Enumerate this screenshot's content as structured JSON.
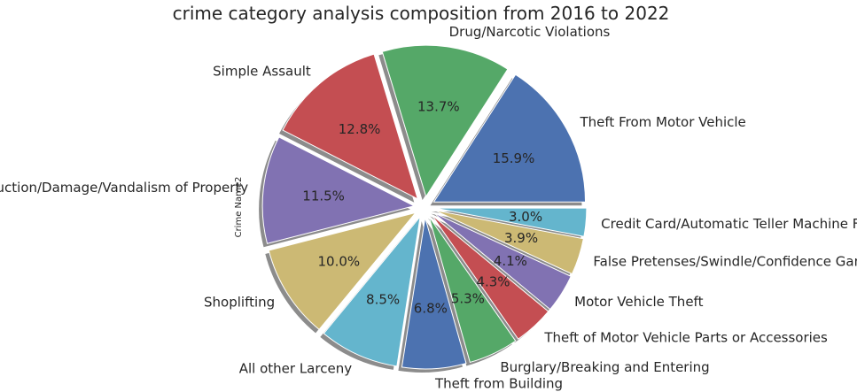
{
  "chart_data": {
    "type": "pie",
    "title": "crime category analysis composition from 2016 to 2022",
    "ylabel": "Crime Name2",
    "categories": [
      "Theft From Motor Vehicle",
      "Drug/Narcotic Violations",
      "Simple Assault",
      "Destruction/Damage/Vandalism of Property",
      "Shoplifting",
      "All other Larceny",
      "Theft from Building",
      "Burglary/Breaking and Entering",
      "Theft of Motor Vehicle Parts or Accessories",
      "Motor Vehicle Theft",
      "False Pretenses/Swindle/Confidence Game",
      "Credit Card/Automatic Teller Machine Fraud"
    ],
    "values": [
      15.9,
      13.7,
      12.8,
      11.5,
      10.0,
      8.5,
      6.8,
      5.3,
      4.3,
      4.1,
      3.9,
      3.0
    ],
    "value_labels": [
      "15.9%",
      "13.7%",
      "12.8%",
      "11.5%",
      "10.0%",
      "8.5%",
      "6.8%",
      "5.3%",
      "4.3%",
      "4.1%",
      "3.9%",
      "3.0%"
    ],
    "colors": [
      "#4c72b0",
      "#55a868",
      "#c44e52",
      "#8172b2",
      "#ccb974",
      "#64b5cd",
      "#4c72b0",
      "#55a868",
      "#c44e52",
      "#8172b2",
      "#ccb974",
      "#64b5cd"
    ],
    "shadow": true,
    "legend": "none"
  }
}
